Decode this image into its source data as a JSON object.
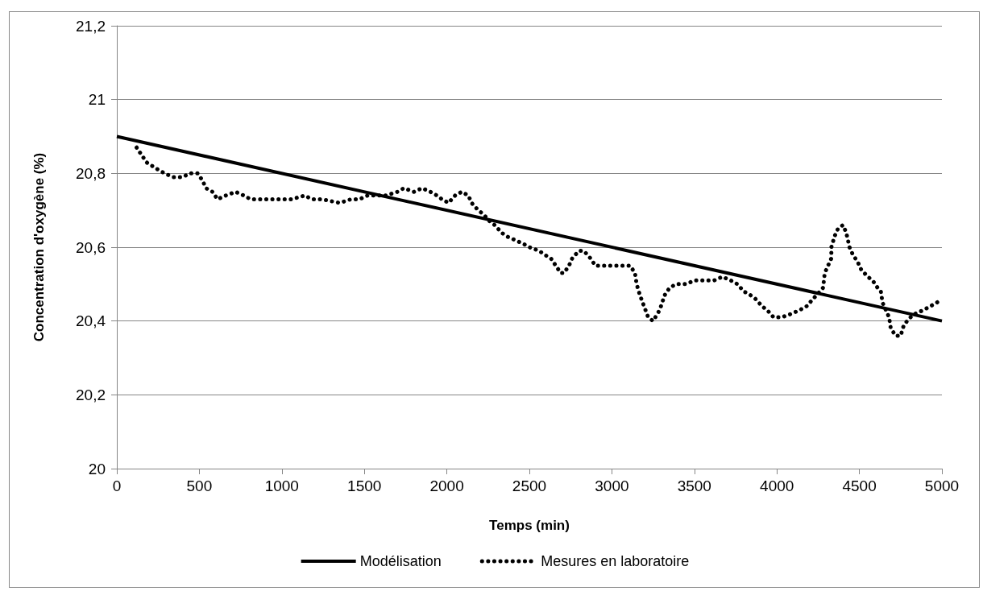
{
  "chart_data": {
    "type": "line",
    "xlabel": "Temps (min)",
    "ylabel": "Concentration d'oxygène (%)",
    "xlim": [
      0,
      5000
    ],
    "xticks": [
      0,
      500,
      1000,
      1500,
      2000,
      2500,
      3000,
      3500,
      4000,
      4500,
      5000
    ],
    "ylim": [
      20,
      21.2
    ],
    "yticks": [
      {
        "value": 20,
        "label": "20"
      },
      {
        "value": 20.2,
        "label": "20,2"
      },
      {
        "value": 20.4,
        "label": "20,4"
      },
      {
        "value": 20.6,
        "label": "20,6"
      },
      {
        "value": 20.8,
        "label": "20,8"
      },
      {
        "value": 21,
        "label": "21"
      },
      {
        "value": 21.2,
        "label": "21,2"
      }
    ],
    "grid": "y",
    "legend": "bottom",
    "marker": "none",
    "series": [
      {
        "name": "Modélisation",
        "color": "#000000",
        "line_style": "solid",
        "x": [
          0,
          5000
        ],
        "values": [
          20.9,
          20.4
        ]
      },
      {
        "name": "Mesures en laboratoire",
        "color": "#000000",
        "line_style": "dotted",
        "x": [
          120,
          180,
          250,
          290,
          340,
          400,
          440,
          490,
          520,
          540,
          580,
          610,
          660,
          720,
          770,
          810,
          870,
          970,
          1060,
          1140,
          1180,
          1240,
          1350,
          1420,
          1470,
          1520,
          1630,
          1700,
          1740,
          1800,
          1850,
          1900,
          1940,
          1970,
          2010,
          2050,
          2090,
          2130,
          2150,
          2190,
          2220,
          2260,
          2290,
          2330,
          2360,
          2410,
          2460,
          2500,
          2560,
          2590,
          2630,
          2660,
          2690,
          2710,
          2740,
          2760,
          2800,
          2830,
          2870,
          2900,
          2960,
          3010,
          3060,
          3110,
          3140,
          3150,
          3170,
          3220,
          3250,
          3290,
          3320,
          3350,
          3390,
          3450,
          3500,
          3560,
          3620,
          3670,
          3720,
          3760,
          3800,
          3840,
          3870,
          3910,
          3940,
          3980,
          4030,
          4090,
          4140,
          4180,
          4220,
          4280,
          4290,
          4310,
          4330,
          4330,
          4350,
          4370,
          4400,
          4420,
          4440,
          4460,
          4490,
          4510,
          4550,
          4580,
          4610,
          4630,
          4640,
          4660,
          4680,
          4690,
          4720,
          4750,
          4770,
          4810,
          4840,
          4890,
          4930,
          4970,
          5000
        ],
        "values": [
          20.87,
          20.83,
          20.81,
          20.8,
          20.79,
          20.79,
          20.8,
          20.8,
          20.78,
          20.76,
          20.75,
          20.73,
          20.74,
          20.75,
          20.74,
          20.73,
          20.73,
          20.73,
          20.73,
          20.74,
          20.73,
          20.73,
          20.72,
          20.73,
          20.73,
          20.74,
          20.74,
          20.75,
          20.76,
          20.75,
          20.76,
          20.75,
          20.74,
          20.73,
          20.72,
          20.74,
          20.75,
          20.74,
          20.72,
          20.7,
          20.69,
          20.67,
          20.66,
          20.64,
          20.63,
          20.62,
          20.61,
          20.6,
          20.59,
          20.58,
          20.57,
          20.55,
          20.53,
          20.53,
          20.55,
          20.57,
          20.59,
          20.59,
          20.57,
          20.55,
          20.55,
          20.55,
          20.55,
          20.55,
          20.53,
          20.5,
          20.47,
          20.41,
          20.4,
          20.43,
          20.47,
          20.49,
          20.5,
          20.5,
          20.51,
          20.51,
          20.51,
          20.52,
          20.51,
          20.5,
          20.48,
          20.47,
          20.46,
          20.44,
          20.43,
          20.41,
          20.41,
          20.42,
          20.43,
          20.44,
          20.46,
          20.49,
          20.53,
          20.55,
          20.57,
          20.6,
          20.63,
          20.65,
          20.66,
          20.64,
          20.6,
          20.58,
          20.56,
          20.54,
          20.52,
          20.51,
          20.49,
          20.48,
          20.45,
          20.43,
          20.41,
          20.38,
          20.36,
          20.36,
          20.39,
          20.41,
          20.42,
          20.43,
          20.44,
          20.45,
          20.46
        ]
      }
    ]
  }
}
